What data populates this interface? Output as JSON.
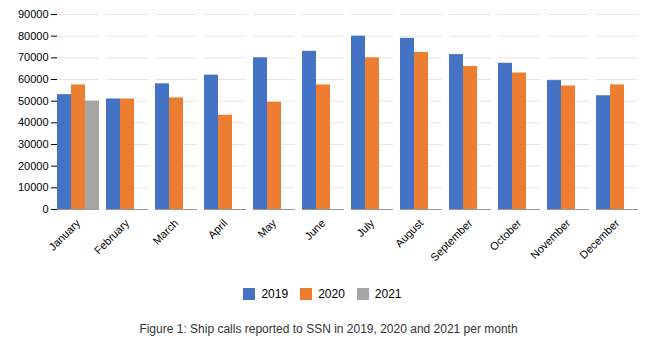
{
  "chart_data": {
    "type": "bar",
    "title": "Figure 1: Ship calls reported to SSN in 2019, 2020 and 2021 per month",
    "categories": [
      "January",
      "February",
      "March",
      "April",
      "May",
      "June",
      "July",
      "August",
      "September",
      "October",
      "November",
      "December"
    ],
    "series": [
      {
        "name": "2019",
        "color": "#4472C4",
        "values": [
          53000,
          51000,
          58000,
          62000,
          70000,
          73000,
          80000,
          79000,
          71500,
          67500,
          59500,
          52500
        ]
      },
      {
        "name": "2020",
        "color": "#ED7D31",
        "values": [
          57500,
          51000,
          51500,
          43500,
          49500,
          57500,
          70000,
          72500,
          66000,
          63000,
          57000,
          57500
        ]
      },
      {
        "name": "2021",
        "color": "#A5A5A5",
        "values": [
          50000,
          null,
          null,
          null,
          null,
          null,
          null,
          null,
          null,
          null,
          null,
          null
        ]
      }
    ],
    "ylim": [
      0,
      90000
    ],
    "yticks": [
      0,
      10000,
      20000,
      30000,
      40000,
      50000,
      60000,
      70000,
      80000,
      90000
    ],
    "grid": true,
    "legend": "bottom"
  }
}
